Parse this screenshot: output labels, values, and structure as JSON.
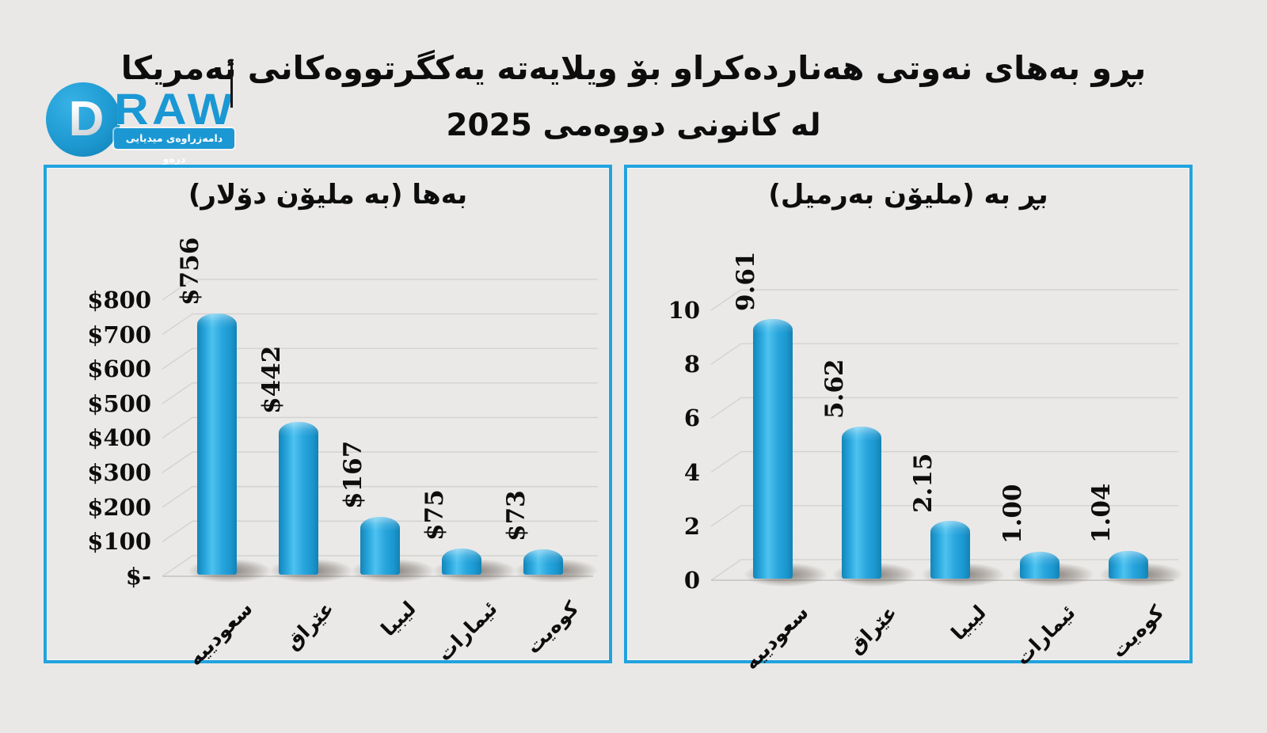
{
  "title": {
    "line1": "بڕو بەهای نەوتی هەناردەکراو بۆ ویلایەتە یەکگرتووەکانی ئەمریکا",
    "line2": "لە کانونی دووەمی 2025"
  },
  "logo": {
    "d": "D",
    "raw": "RAW",
    "banner": "دامەزراوەی میدیایی درەو",
    "accent": "#1b98d4"
  },
  "colors": {
    "background": "#e9e8e6",
    "panel_border": "#22a3de",
    "bar": "#1e9fd8",
    "grid": "#d2d2cf",
    "text": "#0d0d0d"
  },
  "chart_data": [
    {
      "type": "bar",
      "title": "بەها (بە ملیۆن دۆلار)",
      "categories": [
        "سعودییە",
        "عێراق",
        "لیبیا",
        "ئیمارات",
        "کوەیت"
      ],
      "values": [
        756,
        442,
        167,
        75,
        73
      ],
      "value_labels": [
        "$756",
        "$442",
        "$167",
        "$75",
        "$73"
      ],
      "ytick_labels": [
        "$800",
        "$700",
        "$600",
        "$500",
        "$400",
        "$300",
        "$200",
        "$100",
        "$-"
      ],
      "ytick_values": [
        800,
        700,
        600,
        500,
        400,
        300,
        200,
        100,
        0
      ],
      "ylim": [
        0,
        800
      ],
      "xlabel": "",
      "ylabel": "",
      "grid": "on",
      "legend": "none",
      "bar_style": "3d-rounded-cylinder"
    },
    {
      "type": "bar",
      "title": "بڕ بە (ملیۆن بەرمیل)",
      "categories": [
        "سعودییە",
        "عێراق",
        "لیبیا",
        "ئیمارات",
        "کوەیت"
      ],
      "values": [
        9.61,
        5.62,
        2.15,
        1.0,
        1.04
      ],
      "value_labels": [
        "9.61",
        "5.62",
        "2.15",
        "1.00",
        "1.04"
      ],
      "ytick_labels": [
        "10",
        "8",
        "6",
        "4",
        "2",
        "0"
      ],
      "ytick_values": [
        10,
        8,
        6,
        4,
        2,
        0
      ],
      "ylim": [
        0,
        10
      ],
      "xlabel": "",
      "ylabel": "",
      "grid": "on",
      "legend": "none",
      "bar_style": "3d-rounded-cylinder"
    }
  ]
}
